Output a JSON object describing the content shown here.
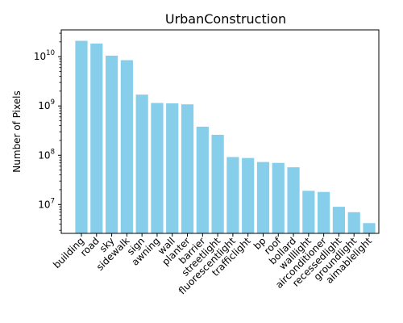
{
  "chart_data": {
    "type": "bar",
    "title": "UrbanConstruction",
    "xlabel": "",
    "ylabel": "Number of Pixels",
    "y_scale": "log",
    "ylim": [
      2600000,
      35000000000
    ],
    "y_ticks": [
      {
        "value": 10000000,
        "base": "10",
        "exp": "7"
      },
      {
        "value": 100000000,
        "base": "10",
        "exp": "8"
      },
      {
        "value": 1000000000,
        "base": "10",
        "exp": "9"
      },
      {
        "value": 10000000000,
        "base": "10",
        "exp": "10"
      }
    ],
    "grid": false,
    "color": "#87ceeb",
    "categories": [
      "building",
      "road",
      "sky",
      "sidewalk",
      "sign",
      "awning",
      "wall",
      "planter",
      "barrier",
      "streetlight",
      "fluorescentlight",
      "trafficlight",
      "bp",
      "roof",
      "bollard",
      "walllight",
      "airconditioner",
      "recessedlight",
      "groundlight",
      "aimablelight"
    ],
    "values": [
      21000000000,
      18500000000,
      10500000000,
      8500000000,
      1700000000,
      1150000000,
      1130000000,
      1080000000,
      380000000,
      260000000,
      92000000,
      88000000,
      73000000,
      70000000,
      57000000,
      19000000,
      18000000,
      9000000,
      7000000,
      4200000
    ]
  }
}
